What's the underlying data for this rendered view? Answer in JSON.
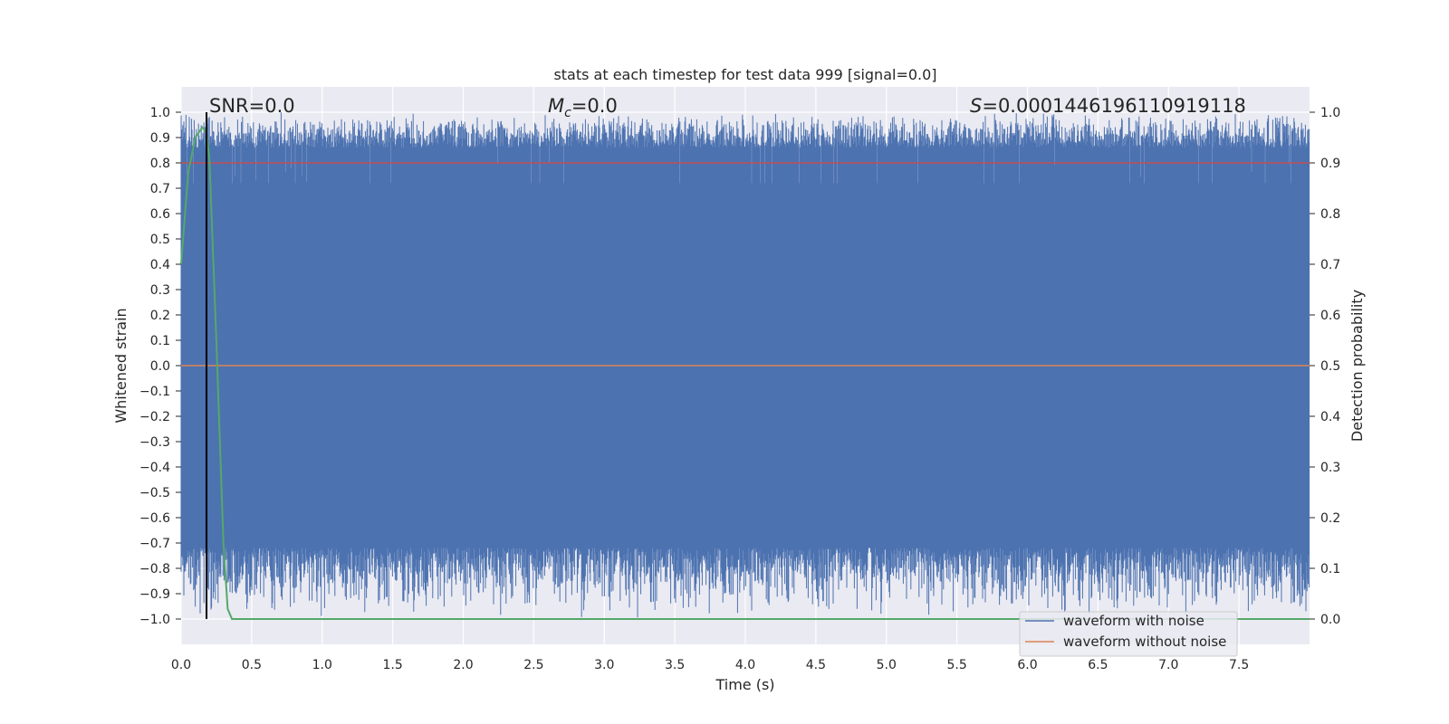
{
  "chart_data": {
    "type": "line",
    "title": "stats at each timestep for test data 999 [signal=0.0]",
    "xlabel": "Time (s)",
    "ylabel_left": "Whitened strain",
    "ylabel_right": "Detection probability",
    "xlim": [
      0.0,
      8.0
    ],
    "ylim_left": [
      -1.1,
      1.1
    ],
    "ylim_right": [
      -0.05,
      1.05
    ],
    "x_ticks": [
      0.0,
      0.5,
      1.0,
      1.5,
      2.0,
      2.5,
      3.0,
      3.5,
      4.0,
      4.5,
      5.0,
      5.5,
      6.0,
      6.5,
      7.0,
      7.5
    ],
    "x_tick_labels": [
      "0.0",
      "0.5",
      "1.0",
      "1.5",
      "2.0",
      "2.5",
      "3.0",
      "3.5",
      "4.0",
      "4.5",
      "5.0",
      "5.5",
      "6.0",
      "6.5",
      "7.0",
      "7.5"
    ],
    "y_left_ticks": [
      1.0,
      0.9,
      0.8,
      0.7,
      0.6,
      0.5,
      0.4,
      0.3,
      0.2,
      0.1,
      0.0,
      -0.1,
      -0.2,
      -0.3,
      -0.4,
      -0.5,
      -0.6,
      -0.7,
      -0.8,
      -0.9,
      -1.0
    ],
    "y_left_tick_labels": [
      "1.0",
      "0.9",
      "0.8",
      "0.7",
      "0.6",
      "0.5",
      "0.4",
      "0.3",
      "0.2",
      "0.1",
      "0.0",
      "−0.1",
      "−0.2",
      "−0.3",
      "−0.4",
      "−0.5",
      "−0.6",
      "−0.7",
      "−0.8",
      "−0.9",
      "−1.0"
    ],
    "y_right_ticks": [
      1.0,
      0.9,
      0.8,
      0.7,
      0.6,
      0.5,
      0.4,
      0.3,
      0.2,
      0.1,
      0.0
    ],
    "y_right_tick_labels": [
      "1.0",
      "0.9",
      "0.8",
      "0.7",
      "0.6",
      "0.5",
      "0.4",
      "0.3",
      "0.2",
      "0.1",
      "0.0"
    ],
    "grid": true,
    "legend_position": "lower-right",
    "series": [
      {
        "name": "waveform with noise",
        "axis": "left",
        "color": "#4c72b0",
        "description_range": [
          -1.0,
          1.0
        ]
      },
      {
        "name": "waveform without noise",
        "axis": "left",
        "color": "#dd8452",
        "values_y": 0.0
      },
      {
        "axis": "right",
        "color": "#55a868",
        "x": [
          0.0,
          0.05,
          0.1,
          0.15,
          0.18,
          0.2,
          0.25,
          0.3,
          0.33,
          0.36,
          8.0
        ],
        "y": [
          0.7,
          0.88,
          0.95,
          0.97,
          0.96,
          0.91,
          0.55,
          0.15,
          0.02,
          0.0,
          0.0
        ]
      },
      {
        "axis": "right",
        "color": "#c44e52",
        "values_y": 0.9
      }
    ],
    "vline_x": 0.18,
    "annotations": {
      "snr": "SNR=0.0",
      "mc_symbol": "M",
      "mc_sub": "c",
      "mc_value": "=0.0",
      "s_symbol": "S",
      "s_value": "=0.0001446196110919118"
    },
    "colors": {
      "plot_bg": "#eaeaf2",
      "grid": "#ffffff",
      "noise": "#4c72b0",
      "clean": "#dd8452",
      "prob": "#55a868",
      "threshold": "#c44e52",
      "vline": "#000000"
    }
  }
}
